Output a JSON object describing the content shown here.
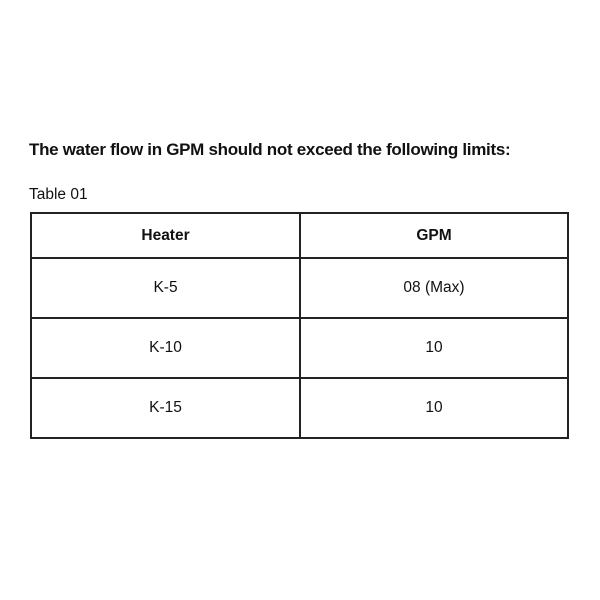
{
  "heading": "The water flow in GPM should not exceed the following limits:",
  "caption": "Table 01",
  "table": {
    "headers": [
      "Heater",
      "GPM"
    ],
    "rows": [
      [
        "K-5",
        "08 (Max)"
      ],
      [
        "K-10",
        "10"
      ],
      [
        "K-15",
        "10"
      ]
    ]
  }
}
